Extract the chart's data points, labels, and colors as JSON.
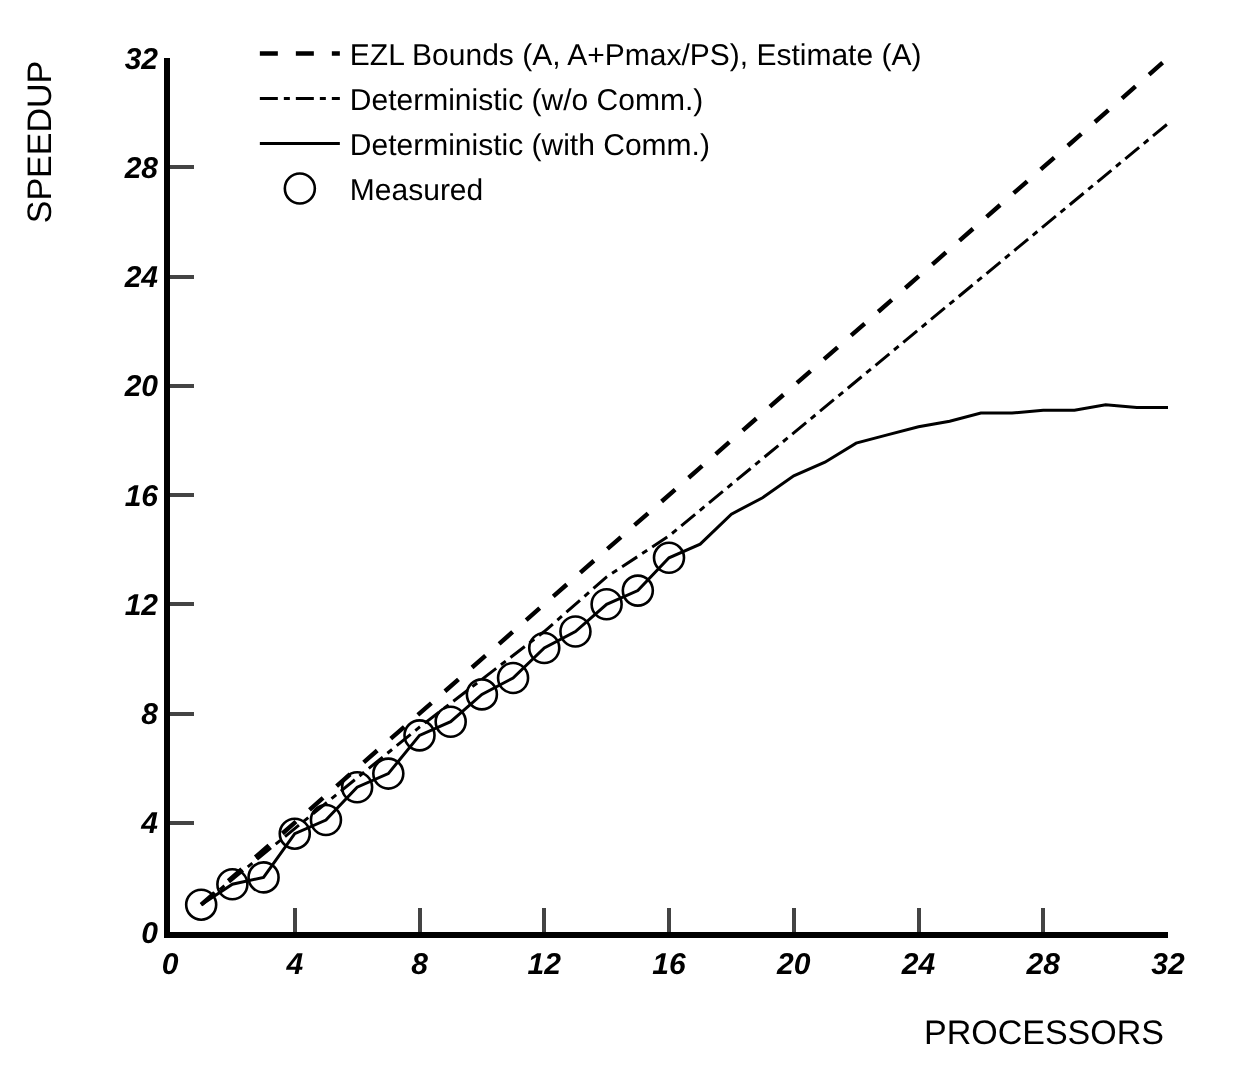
{
  "chart_data": {
    "type": "line",
    "xlabel": "PROCESSORS",
    "ylabel": "SPEEDUP",
    "xlim": [
      0,
      32
    ],
    "ylim": [
      0,
      32
    ],
    "xticks": [
      0,
      4,
      8,
      12,
      16,
      20,
      24,
      28,
      32
    ],
    "yticks": [
      0,
      4,
      8,
      12,
      16,
      20,
      24,
      28,
      32
    ],
    "legend": "top left",
    "series": [
      {
        "name": "EZL Bounds (A, A+Pmax/PS), Estimate (A)",
        "color": "#000000",
        "line_style": "dashed",
        "marker": "none",
        "x": [
          1,
          32
        ],
        "values": [
          1,
          32
        ]
      },
      {
        "name": "Deterministic (w/o Comm.)",
        "color": "#000000",
        "line_style": "dashdot",
        "marker": "none",
        "x": [
          1,
          8,
          12,
          14,
          16,
          32
        ],
        "values": [
          1,
          7.5,
          11,
          13,
          14.5,
          29.6
        ]
      },
      {
        "name": "Deterministic (with Comm.)",
        "color": "#000000",
        "line_style": "solid",
        "marker": "none",
        "x": [
          1,
          2,
          3,
          4,
          5,
          6,
          7,
          8,
          9,
          10,
          11,
          12,
          13,
          14,
          15,
          16,
          17,
          18,
          19,
          20,
          21,
          22,
          23,
          24,
          25,
          26,
          27,
          28,
          29,
          30,
          31,
          32
        ],
        "values": [
          1.0,
          1.75,
          2.0,
          3.6,
          4.1,
          5.3,
          5.8,
          7.2,
          7.7,
          8.7,
          9.3,
          10.4,
          11.0,
          12.0,
          12.5,
          13.7,
          14.2,
          15.3,
          15.9,
          16.7,
          17.2,
          17.9,
          18.2,
          18.5,
          18.7,
          19.0,
          19.0,
          19.1,
          19.1,
          19.3,
          19.2,
          19.2
        ]
      },
      {
        "name": "Measured",
        "type": "scatter",
        "color": "#000000",
        "marker": "circle",
        "x": [
          1,
          2,
          3,
          4,
          5,
          6,
          7,
          8,
          9,
          10,
          11,
          12,
          13,
          14,
          15,
          16
        ],
        "values": [
          1.0,
          1.75,
          2.0,
          3.6,
          4.1,
          5.3,
          5.8,
          7.2,
          7.7,
          8.7,
          9.3,
          10.4,
          11.0,
          12.0,
          12.5,
          13.7
        ]
      }
    ]
  }
}
